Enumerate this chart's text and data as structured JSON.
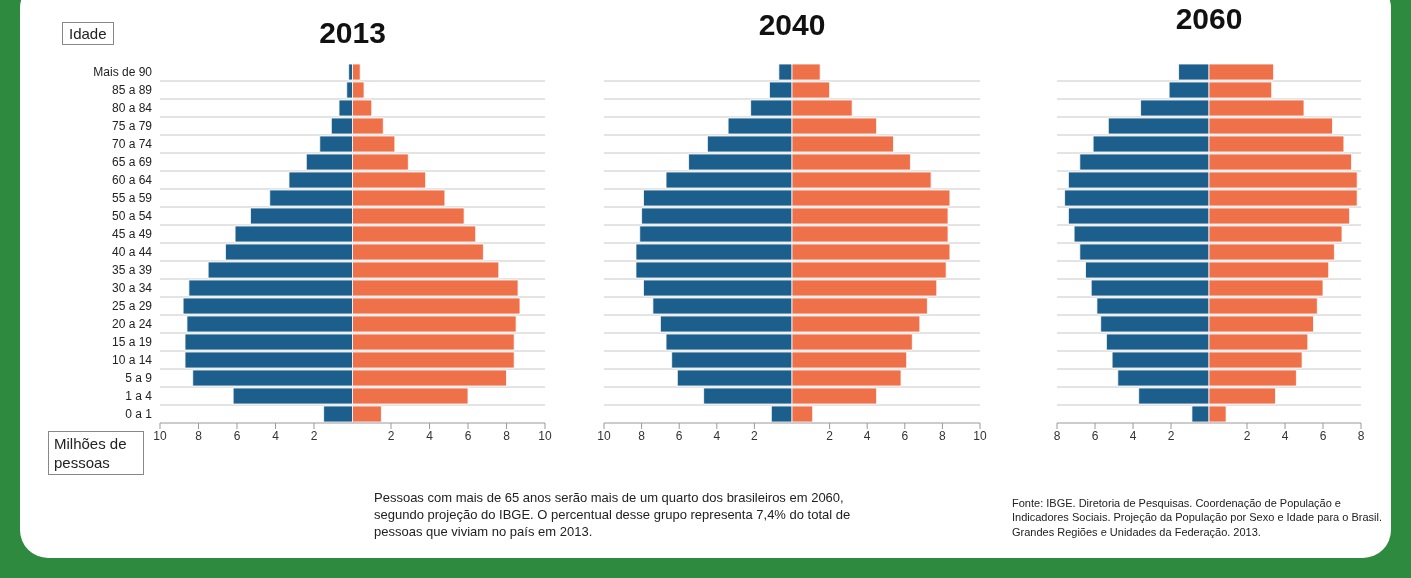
{
  "chart_data": [
    {
      "type": "bar",
      "orientation": "horizontal",
      "stacked": true,
      "title": "2013",
      "ylabel": "Idade",
      "xlabel": "Milhões de pessoas",
      "grid": "y",
      "categories": [
        "Mais de 90",
        "85 a 89",
        "80 a 84",
        "75 a 79",
        "70 a 74",
        "65 a 69",
        "60 a 64",
        "55 a 59",
        "50 a 54",
        "45 a 49",
        "40 a 44",
        "35 a 39",
        "30 a 34",
        "25 a 29",
        "20 a 24",
        "15 a 19",
        "10 a 14",
        "5 a 9",
        "1 a 4",
        "0 a 1"
      ],
      "xlim": [
        -10,
        10
      ],
      "xticks": [
        {
          "value": -10,
          "label": "10"
        },
        {
          "value": -8,
          "label": "8"
        },
        {
          "value": -6,
          "label": "6"
        },
        {
          "value": -4,
          "label": "4"
        },
        {
          "value": -2,
          "label": "2"
        },
        2,
        4,
        6,
        8,
        10
      ],
      "series": [
        {
          "color": "#1c5f8c",
          "values": [
            -0.2,
            -0.3,
            -0.7,
            -1.1,
            -1.7,
            -2.4,
            -3.3,
            -4.3,
            -5.3,
            -6.1,
            -6.6,
            -7.5,
            -8.5,
            -8.8,
            -8.6,
            -8.7,
            -8.7,
            -8.3,
            -6.2,
            -1.5
          ]
        },
        {
          "color": "#ef7149",
          "values": [
            0.4,
            0.6,
            1.0,
            1.6,
            2.2,
            2.9,
            3.8,
            4.8,
            5.8,
            6.4,
            6.8,
            7.6,
            8.6,
            8.7,
            8.5,
            8.4,
            8.4,
            8.0,
            6.0,
            1.5
          ]
        }
      ]
    },
    {
      "type": "bar",
      "orientation": "horizontal",
      "stacked": true,
      "title": "2040",
      "grid": "y",
      "tick_labels": "x",
      "categories": [
        null,
        null,
        null,
        null,
        null,
        null,
        null,
        null,
        null,
        null,
        null,
        null,
        null,
        null,
        null,
        null,
        null,
        null,
        null,
        null
      ],
      "xlim": [
        -10,
        10
      ],
      "xticks": [
        {
          "value": -10,
          "label": "10"
        },
        {
          "value": -8,
          "label": "8"
        },
        {
          "value": -6,
          "label": "6"
        },
        {
          "value": -4,
          "label": "4"
        },
        {
          "value": -2,
          "label": "2"
        },
        2,
        4,
        6,
        8,
        10
      ],
      "series": [
        {
          "color": "#1c5f8c",
          "values": [
            -0.7,
            -1.2,
            -2.2,
            -3.4,
            -4.5,
            -5.5,
            -6.7,
            -7.9,
            -8.0,
            -8.1,
            -8.3,
            -8.3,
            -7.9,
            -7.4,
            -7.0,
            -6.7,
            -6.4,
            -6.1,
            -4.7,
            -1.1
          ]
        },
        {
          "color": "#ef7149",
          "values": [
            1.5,
            2.0,
            3.2,
            4.5,
            5.4,
            6.3,
            7.4,
            8.4,
            8.3,
            8.3,
            8.4,
            8.2,
            7.7,
            7.2,
            6.8,
            6.4,
            6.1,
            5.8,
            4.5,
            1.1
          ]
        }
      ],
      "annotations": [
        "Pessoas com mais de 65 anos serão mais de um quarto dos brasileiros em 2060, segundo projeção do IBGE. O percentual desse grupo representa 7,4% do total de pessoas que viviam no país em 2013."
      ]
    },
    {
      "type": "bar",
      "orientation": "horizontal",
      "stacked": true,
      "title": "2060",
      "grid": "y",
      "tick_labels": "x",
      "categories": [
        null,
        null,
        null,
        null,
        null,
        null,
        null,
        null,
        null,
        null,
        null,
        null,
        null,
        null,
        null,
        null,
        null,
        null,
        null,
        null
      ],
      "xlim": [
        -8,
        8
      ],
      "xticks": [
        {
          "value": -8,
          "label": "8"
        },
        {
          "value": -6,
          "label": "6"
        },
        {
          "value": -4,
          "label": "4"
        },
        {
          "value": -2,
          "label": "2"
        },
        2,
        4,
        6,
        8
      ],
      "series": [
        {
          "color": "#1c5f8c",
          "values": [
            -1.6,
            -2.1,
            -3.6,
            -5.3,
            -6.1,
            -6.8,
            -7.4,
            -7.6,
            -7.4,
            -7.1,
            -6.8,
            -6.5,
            -6.2,
            -5.9,
            -5.7,
            -5.4,
            -5.1,
            -4.8,
            -3.7,
            -0.9
          ]
        },
        {
          "color": "#ef7149",
          "values": [
            3.4,
            3.3,
            5.0,
            6.5,
            7.1,
            7.5,
            7.8,
            7.8,
            7.4,
            7.0,
            6.6,
            6.3,
            6.0,
            5.7,
            5.5,
            5.2,
            4.9,
            4.6,
            3.5,
            0.9
          ]
        }
      ],
      "annotations": [
        "Fonte: IBGE. Diretoria de Pesquisas. Coordenação de População e Indicadores Sociais. Projeção da População por Sexo e Idade para o Brasil. Grandes Regiões e Unidades da Federação. 2013."
      ]
    }
  ]
}
